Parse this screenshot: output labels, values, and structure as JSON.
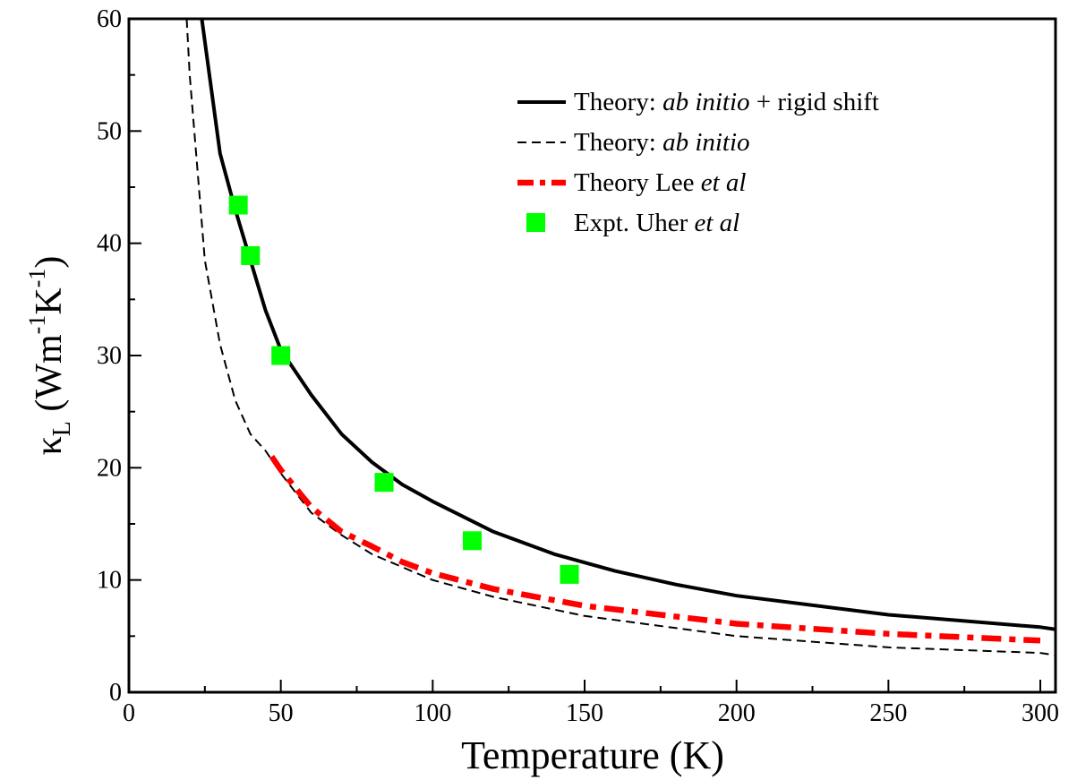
{
  "chart_data": {
    "type": "line",
    "xlabel": "Temperature (K)",
    "ylabel": {
      "kappa": "κ",
      "kappa_sub": "L",
      "open": " (Wm",
      "m_exp": "-1",
      "k_unit": "K",
      "k_exp": "-1",
      "close": ")"
    },
    "xlim": [
      0,
      305
    ],
    "ylim": [
      0,
      60
    ],
    "x_ticks": [
      0,
      50,
      100,
      150,
      200,
      250,
      300
    ],
    "x_tick_labels": [
      "0",
      "50",
      "100",
      "150",
      "200",
      "250",
      "300"
    ],
    "y_ticks": [
      0,
      10,
      20,
      30,
      40,
      50,
      60
    ],
    "y_tick_labels": [
      "0",
      "10",
      "20",
      "30",
      "40",
      "50",
      "60"
    ],
    "grid": false,
    "legend_position": "top-right",
    "series": [
      {
        "id": "rigid_shift",
        "legend": [
          {
            "text": "Theory: ",
            "italic": false
          },
          {
            "text": "ab initio",
            "italic": true
          },
          {
            "text": " + rigid shift",
            "italic": false
          }
        ],
        "style": "solid",
        "color": "#000000",
        "x": [
          24,
          30,
          35,
          40,
          45,
          50,
          60,
          70,
          80,
          90,
          100,
          120,
          140,
          160,
          180,
          200,
          250,
          300,
          305
        ],
        "y": [
          60,
          48,
          43,
          38.5,
          34,
          30.5,
          26.5,
          23,
          20.5,
          18.5,
          17,
          14.3,
          12.3,
          10.8,
          9.6,
          8.6,
          6.9,
          5.8,
          5.6
        ]
      },
      {
        "id": "ab_initio",
        "legend": [
          {
            "text": "Theory: ",
            "italic": false
          },
          {
            "text": "ab initio",
            "italic": true
          }
        ],
        "style": "dashed",
        "color": "#000000",
        "x": [
          19,
          20,
          25,
          30,
          35,
          40,
          45,
          50,
          60,
          70,
          80,
          100,
          120,
          150,
          200,
          250,
          300,
          305
        ],
        "y": [
          60,
          55,
          38.5,
          31,
          26,
          23,
          21.5,
          19.5,
          16,
          14,
          12.3,
          10,
          8.5,
          6.8,
          5,
          4,
          3.5,
          3.3
        ]
      },
      {
        "id": "lee",
        "legend": [
          {
            "text": "Theory Lee ",
            "italic": false
          },
          {
            "text": "et al",
            "italic": true
          }
        ],
        "style": "dashdot",
        "color": "#ff0000",
        "x": [
          47,
          50,
          60,
          70,
          80,
          90,
          100,
          120,
          150,
          200,
          250,
          300
        ],
        "y": [
          21,
          19.8,
          16.5,
          14.3,
          13,
          11.6,
          10.6,
          9.2,
          7.7,
          6.1,
          5.2,
          4.6
        ]
      },
      {
        "id": "uher",
        "legend": [
          {
            "text": "Expt. Uher ",
            "italic": false
          },
          {
            "text": "et al",
            "italic": true
          }
        ],
        "style": "marker-square",
        "color": "#00ff00",
        "x": [
          36,
          40,
          50,
          84,
          113,
          145
        ],
        "y": [
          43.4,
          38.9,
          30,
          18.7,
          13.5,
          10.5
        ]
      }
    ]
  }
}
